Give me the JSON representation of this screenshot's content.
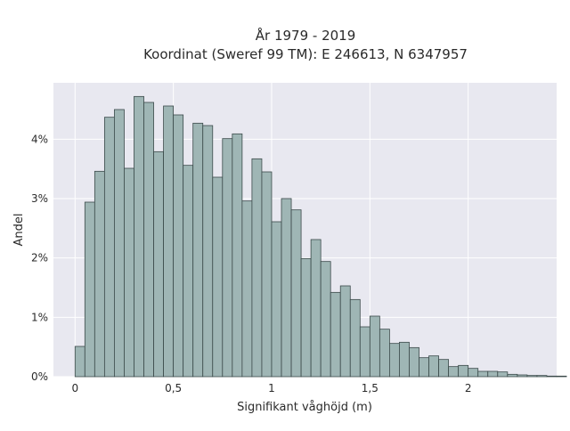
{
  "chart_data": {
    "type": "histogram",
    "title_line1": "År 1979 - 2019",
    "title_line2": "Koordinat (Sweref 99 TM): E 246613, N 6347957",
    "xlabel": "Signifikant våghöjd (m)",
    "ylabel": "Andel",
    "x_ticks": [
      {
        "value": 0,
        "label": "0"
      },
      {
        "value": 0.5,
        "label": "0,5"
      },
      {
        "value": 1,
        "label": "1"
      },
      {
        "value": 1.5,
        "label": "1,5"
      },
      {
        "value": 2,
        "label": "2"
      }
    ],
    "y_ticks": [
      {
        "value": 0,
        "label": "0%"
      },
      {
        "value": 0.01,
        "label": "1%"
      },
      {
        "value": 0.02,
        "label": "2%"
      },
      {
        "value": 0.03,
        "label": "3%"
      },
      {
        "value": 0.04,
        "label": "4%"
      }
    ],
    "xlim": [
      -0.11,
      2.45
    ],
    "ylim": [
      0,
      0.0495
    ],
    "bin_width": 0.05,
    "bin_start": 0.0,
    "values": [
      0.0051,
      0.0294,
      0.0346,
      0.0437,
      0.045,
      0.0351,
      0.0472,
      0.0462,
      0.0379,
      0.0456,
      0.0441,
      0.0356,
      0.0427,
      0.0423,
      0.0336,
      0.0401,
      0.0409,
      0.0296,
      0.0367,
      0.0345,
      0.0261,
      0.03,
      0.0281,
      0.0199,
      0.0231,
      0.0194,
      0.0142,
      0.0153,
      0.013,
      0.0084,
      0.0102,
      0.008,
      0.0056,
      0.0058,
      0.0049,
      0.0032,
      0.0035,
      0.0029,
      0.0017,
      0.0019,
      0.0014,
      0.0009,
      0.0009,
      0.0008,
      0.0004,
      0.0003,
      0.0002,
      0.0002,
      0.0001,
      0.0001
    ],
    "grid": true,
    "colors": {
      "plot_background": "#e8e8f0",
      "grid": "#ffffff",
      "bar_fill": "#9fb6b5",
      "bar_edge": "#3b4a4a"
    }
  }
}
